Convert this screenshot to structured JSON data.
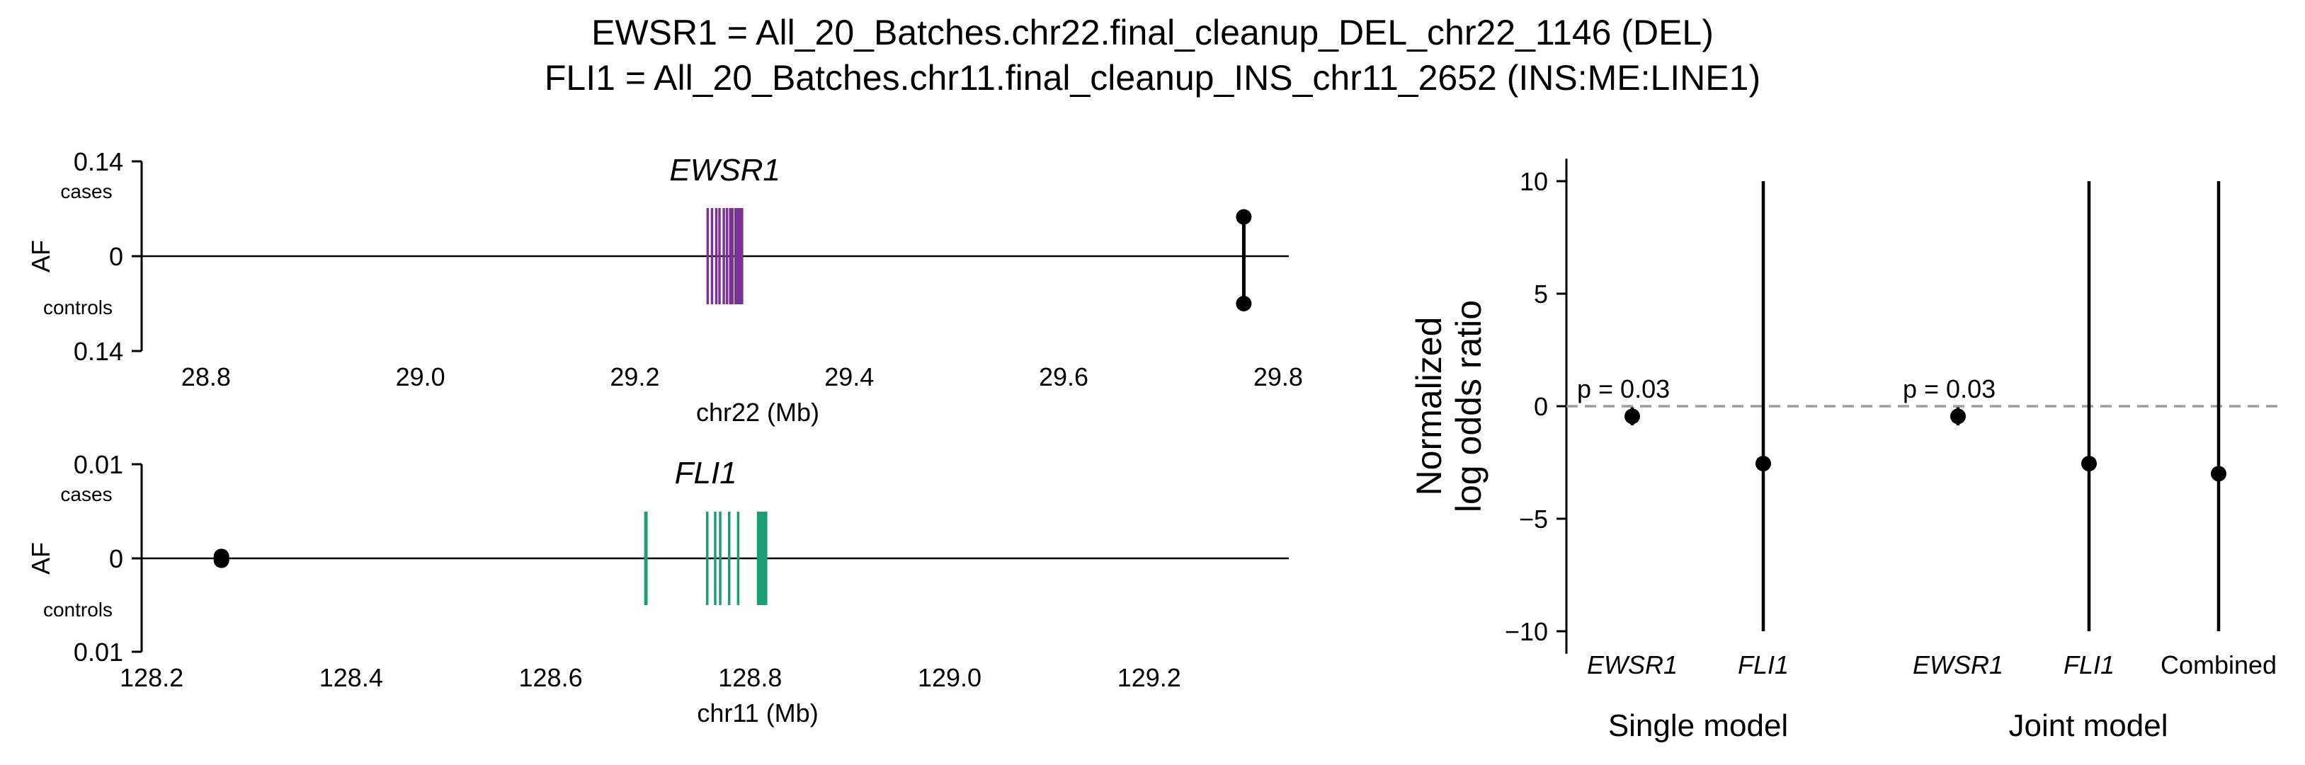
{
  "title": {
    "line1": "EWSR1 = All_20_Batches.chr22.final_cleanup_DEL_chr22_1146 (DEL)",
    "line2": "FLI1 = All_20_Batches.chr11.final_cleanup_INS_chr11_2652 (INS:ME:LINE1)"
  },
  "chart_data": [
    {
      "type": "gene-track",
      "gene": "EWSR1",
      "xlabel": "chr22 (Mb)",
      "ylabel": "AF",
      "xlim": [
        28.74,
        29.81
      ],
      "xticks": [
        "28.8",
        "29.0",
        "29.2",
        "29.4",
        "29.6",
        "29.8"
      ],
      "yticks": {
        "top": "0.14",
        "mid": "0",
        "bottom": "0.14"
      },
      "ylim": [
        -0.14,
        0.14
      ],
      "case_label": "cases",
      "control_label": "controls",
      "gene_color": "#7B3294",
      "exons": [
        29.268,
        29.272,
        29.276,
        29.279,
        29.283,
        29.286,
        29.289,
        29.291,
        29.294,
        29.296,
        29.298,
        29.3
      ],
      "variant": {
        "x": 29.768,
        "af_cases": 0.058,
        "af_controls": 0.07
      }
    },
    {
      "type": "gene-track",
      "gene": "FLI1",
      "xlabel": "chr11 (Mb)",
      "ylabel": "AF",
      "xlim": [
        128.19,
        129.34
      ],
      "xticks": [
        "128.2",
        "128.4",
        "128.6",
        "128.8",
        "129.0",
        "129.2"
      ],
      "yticks": {
        "top": "0.01",
        "mid": "0",
        "bottom": "0.01"
      },
      "ylim": [
        -0.01,
        0.01
      ],
      "case_label": "cases",
      "control_label": "controls",
      "gene_color": "#1A9E77",
      "exons": [
        128.695,
        128.696,
        128.757,
        128.765,
        128.77,
        128.779,
        128.788,
        128.808,
        128.81,
        128.812,
        128.814,
        128.816
      ],
      "variant": {
        "x": 128.27,
        "af_cases": 0.0002,
        "af_controls": 0.0002
      }
    },
    {
      "type": "errorbar",
      "ylabel_line1": "Normalized",
      "ylabel_line2": "log odds ratio",
      "ylim": [
        -11.0,
        11.0
      ],
      "yticks": [
        10,
        5,
        0,
        -5,
        -10
      ],
      "ytick_labels": [
        "10",
        "5",
        "0",
        "−5",
        "−10"
      ],
      "reference_line": 0,
      "groups": [
        {
          "label": "Single model",
          "items": [
            "EWSR1",
            "FLI1"
          ]
        },
        {
          "label": "Joint model",
          "items": [
            "EWSR1",
            "FLI1",
            "Combined"
          ]
        }
      ],
      "points": [
        {
          "label": "EWSR1",
          "group": "Single model",
          "estimate": -0.45,
          "lower": -0.85,
          "upper": -0.05,
          "annotation": "p = 0.03",
          "italic": true
        },
        {
          "label": "FLI1",
          "group": "Single model",
          "estimate": -2.55,
          "lower": -10.0,
          "upper": 10.0,
          "italic": true
        },
        {
          "label": "EWSR1",
          "group": "Joint model",
          "estimate": -0.45,
          "lower": -0.85,
          "upper": -0.05,
          "annotation": "p = 0.03",
          "italic": true
        },
        {
          "label": "FLI1",
          "group": "Joint model",
          "estimate": -2.55,
          "lower": -10.0,
          "upper": 10.0,
          "italic": true
        },
        {
          "label": "Combined",
          "group": "Joint model",
          "estimate": -3.0,
          "lower": -10.0,
          "upper": 10.0,
          "italic": false
        }
      ]
    }
  ]
}
